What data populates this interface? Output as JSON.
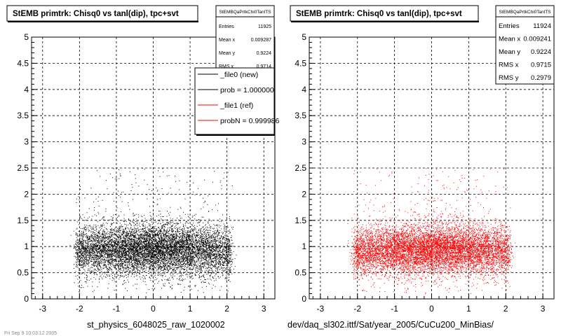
{
  "panels": [
    {
      "title": "StEMB primtrk: Chisq0 vs tanl(dip), tpc+svt",
      "xlabel": "st_physics_6048025_raw_1020002",
      "stats": {
        "name": "StEMBQaPrtkChi0TanlTS",
        "rows": [
          {
            "label": "Entries",
            "value": "11925"
          },
          {
            "label": "Mean x",
            "value": "0.009287"
          },
          {
            "label": "Mean y",
            "value": "0.9224"
          },
          {
            "label": "RMS x",
            "value": "0.9714"
          }
        ]
      },
      "legend": [
        {
          "label": "_file0 (new)",
          "color": "#000000"
        },
        {
          "label": "prob = 1.000000",
          "color": "#000000"
        },
        {
          "label": "_file1 (ref)",
          "color": "#ff0000"
        },
        {
          "label": "probN = 0.999986",
          "color": "#ff0000"
        }
      ]
    },
    {
      "title": "StEMB primtrk: Chisq0 vs tanl(dip), tpc+svt",
      "xlabel": "dev/daq_sl302.ittf/Sat/year_2005/CuCu200_MinBias/",
      "stats": {
        "name": "StEMBQaPrtkChi0TanlTS",
        "rows": [
          {
            "label": "Entries",
            "value": "11924"
          },
          {
            "label": "Mean x",
            "value": "0.009241"
          },
          {
            "label": "Mean y",
            "value": "0.9224"
          },
          {
            "label": "RMS x",
            "value": "0.9715"
          },
          {
            "label": "RMS y",
            "value": "0.2979"
          }
        ]
      }
    }
  ],
  "footer_text": "Fri Sep  9 10:03:12 2005",
  "chart_data": [
    {
      "type": "scatter",
      "title": "StEMB primtrk: Chisq0 vs tanl(dip), tpc+svt",
      "xlabel": "st_physics_6048025_raw_1020002",
      "ylabel": "",
      "xlim": [
        -3.3,
        3.3
      ],
      "ylim": [
        0,
        5
      ],
      "xticks": [
        "-3",
        "-2",
        "-1",
        "0",
        "1",
        "2",
        "3"
      ],
      "yticks": [
        "0",
        "0.5",
        "1",
        "1.5",
        "2",
        "2.5",
        "3",
        "3.5",
        "4",
        "4.5",
        "5"
      ],
      "grid": true,
      "legend_position": "top-right",
      "series": [
        {
          "name": "_file0 (new)",
          "color": "#000000",
          "entries": 11925,
          "mean_x": 0.009287,
          "mean_y": 0.9224,
          "rms_x": 0.9714
        }
      ]
    },
    {
      "type": "scatter",
      "title": "StEMB primtrk: Chisq0 vs tanl(dip), tpc+svt",
      "xlabel": "dev/daq_sl302.ittf/Sat/year_2005/CuCu200_MinBias/",
      "ylabel": "",
      "xlim": [
        -3.3,
        3.3
      ],
      "ylim": [
        0,
        5
      ],
      "xticks": [
        "-3",
        "-2",
        "-1",
        "0",
        "1",
        "2",
        "3"
      ],
      "yticks": [
        "0",
        "0.5",
        "1",
        "1.5",
        "2",
        "2.5",
        "3",
        "3.5",
        "4",
        "4.5",
        "5"
      ],
      "grid": true,
      "series": [
        {
          "name": "_file1 (ref)",
          "color": "#ff0000",
          "entries": 11924,
          "mean_x": 0.009241,
          "mean_y": 0.9224,
          "rms_x": 0.9715,
          "rms_y": 0.2979
        }
      ]
    }
  ]
}
